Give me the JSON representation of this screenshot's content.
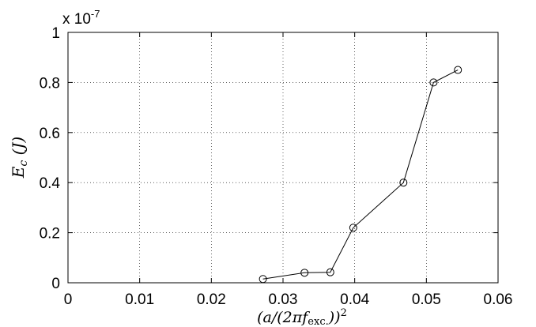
{
  "chart_data": {
    "type": "line",
    "x": [
      0.0272,
      0.033,
      0.0366,
      0.0398,
      0.0468,
      0.051,
      0.0544
    ],
    "y": [
      1.5e-09,
      4e-09,
      4.2e-09,
      2.2e-08,
      4e-08,
      8e-08,
      8.5e-08
    ],
    "series": [
      {
        "values": [
          1.5e-09,
          4e-09,
          4.2e-09,
          2.2e-08,
          4e-08,
          8e-08,
          8.5e-08
        ],
        "color": "#000000",
        "marker": "circle"
      }
    ],
    "xlim": [
      0,
      0.06
    ],
    "ylim": [
      0,
      1e-07
    ],
    "xticks": [
      "0",
      "0.01",
      "0.02",
      "0.03",
      "0.04",
      "0.05",
      "0.06"
    ],
    "yticks": [
      "0",
      "0.2",
      "0.4",
      "0.6",
      "0.8",
      "1"
    ],
    "y_multiplier": {
      "base": "x 10",
      "exponent": "-7"
    },
    "xlabel": {
      "main": "(a/(2πf",
      "sub": "exc.",
      "close": "))",
      "exp": "2"
    },
    "ylabel": {
      "var": "E",
      "sub": "c",
      "unit": " (J)"
    },
    "grid": true,
    "grid_style": "dotted"
  }
}
